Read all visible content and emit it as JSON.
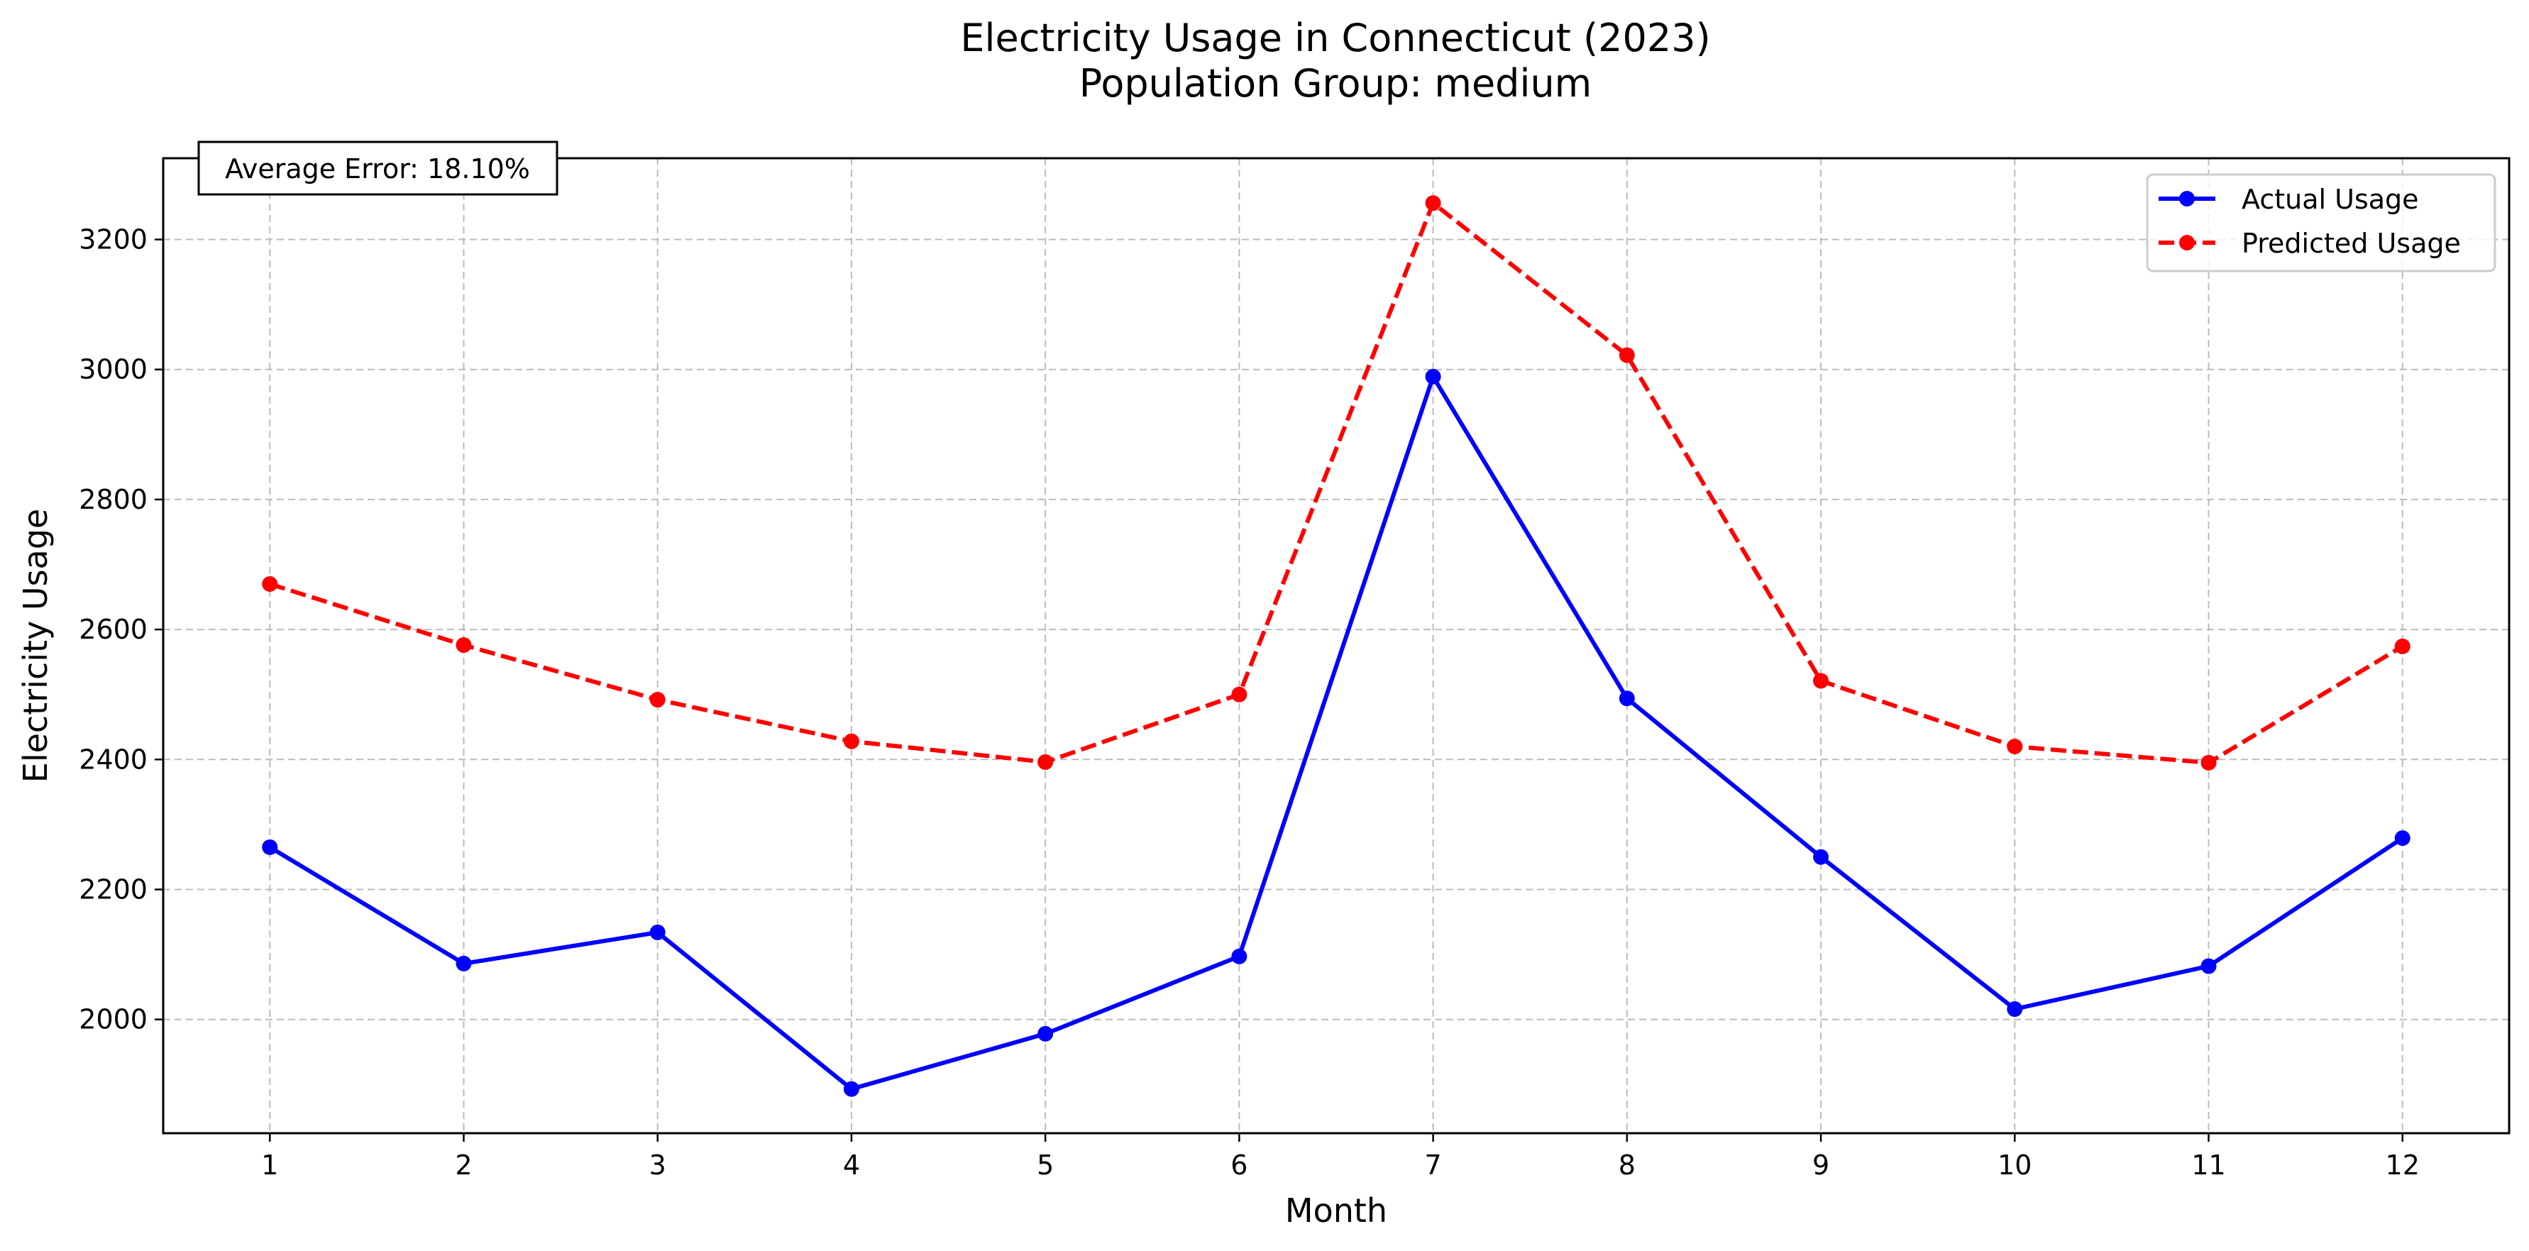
{
  "chart_data": {
    "type": "line",
    "title": "Electricity Usage in Connecticut (2023)",
    "subtitle": "Population Group: medium",
    "xlabel": "Month",
    "ylabel": "Electricity Usage",
    "x": [
      1,
      2,
      3,
      4,
      5,
      6,
      7,
      8,
      9,
      10,
      11,
      12
    ],
    "xlim": [
      0.45,
      12.55
    ],
    "ylim": [
      1825,
      3325
    ],
    "yticks": [
      2000,
      2200,
      2400,
      2600,
      2800,
      3000,
      3200
    ],
    "grid": true,
    "legend_position": "top-right",
    "annotation": "Average Error: 18.10%",
    "series": [
      {
        "name": "Actual Usage",
        "color": "#0000ff",
        "line_style": "solid",
        "values": [
          2265,
          2086,
          2134,
          1893,
          1978,
          2097,
          2989,
          2494,
          2250,
          2016,
          2082,
          2279
        ]
      },
      {
        "name": "Predicted Usage",
        "color": "#ff0000",
        "line_style": "dashed",
        "values": [
          2670,
          2576,
          2492,
          2428,
          2396,
          2500,
          3256,
          3022,
          2521,
          2420,
          2395,
          2574
        ]
      }
    ]
  }
}
